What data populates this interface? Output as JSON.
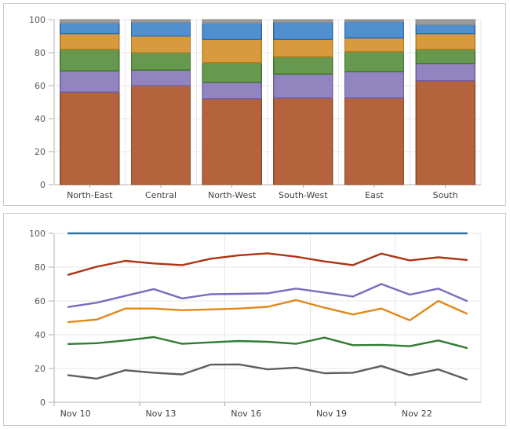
{
  "chart_data": [
    {
      "type": "bar",
      "stacked": "100%",
      "title": "",
      "xlabel": "",
      "ylabel": "",
      "ylim": [
        0,
        100
      ],
      "yticks": [
        0,
        20,
        40,
        60,
        80,
        100
      ],
      "grid": true,
      "legend_position": "none",
      "categories": [
        "North-East",
        "Central",
        "North-West",
        "South-West",
        "East",
        "South"
      ],
      "series": [
        {
          "name": "brown",
          "color": "#b5633c",
          "border": "#8f4a26",
          "values": [
            56,
            60,
            52,
            52.5,
            52.5,
            63
          ]
        },
        {
          "name": "purple",
          "color": "#9184bf",
          "border": "#6c5da7",
          "values": [
            13,
            9.5,
            10,
            14.5,
            16,
            10.5
          ]
        },
        {
          "name": "green",
          "color": "#66994f",
          "border": "#3e7527",
          "values": [
            13,
            10.5,
            12,
            10.5,
            12,
            8.5
          ]
        },
        {
          "name": "orange",
          "color": "#d89a3f",
          "border": "#b8791b",
          "values": [
            9.5,
            10,
            14,
            10.5,
            8.5,
            9.5
          ]
        },
        {
          "name": "blue",
          "color": "#5090ce",
          "border": "#2a66ae",
          "values": [
            6.5,
            8.5,
            10,
            10.5,
            10,
            5.5
          ]
        },
        {
          "name": "gray",
          "color": "#9c9c9c",
          "border": "#8a8a8a",
          "values": [
            2,
            1.5,
            2,
            1.5,
            1,
            3
          ]
        }
      ]
    },
    {
      "type": "line",
      "title": "",
      "xlabel": "",
      "ylabel": "",
      "ylim": [
        0,
        100
      ],
      "yticks": [
        0,
        20,
        40,
        60,
        80,
        100
      ],
      "grid": true,
      "legend_position": "none",
      "x": [
        "Nov 10",
        "Nov 11",
        "Nov 12",
        "Nov 13",
        "Nov 14",
        "Nov 15",
        "Nov 16",
        "Nov 17",
        "Nov 18",
        "Nov 19",
        "Nov 20",
        "Nov 21",
        "Nov 22",
        "Nov 23",
        "Nov 24"
      ],
      "x_tick_labels": [
        "Nov 10",
        "Nov 13",
        "Nov 16",
        "Nov 19",
        "Nov 22"
      ],
      "x_tick_indices": [
        0,
        3,
        6,
        9,
        12
      ],
      "series": [
        {
          "name": "gray",
          "color": "#5e5e5e",
          "values": [
            16,
            14,
            19,
            17.5,
            16.5,
            22.3,
            22.4,
            19.5,
            20.5,
            17.2,
            17.5,
            21.5,
            16,
            19.5,
            13.5
          ]
        },
        {
          "name": "green",
          "color": "#2f7d31",
          "values": [
            34.5,
            35,
            36.6,
            38.6,
            34.6,
            35.5,
            36.3,
            35.8,
            34.6,
            38.3,
            33.8,
            34,
            33.2,
            36.6,
            32.2
          ]
        },
        {
          "name": "orange",
          "color": "#e0881a",
          "values": [
            47.5,
            49,
            55.5,
            55.5,
            54.5,
            55,
            55.5,
            56.5,
            60.5,
            56,
            52,
            55.5,
            48.5,
            60,
            52.5
          ]
        },
        {
          "name": "purple",
          "color": "#7a6cbd",
          "values": [
            56.4,
            59,
            63,
            67,
            61.5,
            64,
            64.2,
            64.5,
            67.3,
            65,
            62.6,
            70,
            63.7,
            67.3,
            60
          ]
        },
        {
          "name": "red",
          "color": "#ae3311",
          "values": [
            75.5,
            80.3,
            83.7,
            82.2,
            81.2,
            85,
            87,
            88.2,
            86.2,
            83.4,
            81.2,
            88,
            84,
            85.8,
            84.3
          ]
        },
        {
          "name": "blue",
          "color": "#2c6e9e",
          "values": [
            100,
            100,
            100,
            100,
            100,
            100,
            100,
            100,
            100,
            100,
            100,
            100,
            100,
            100,
            100
          ]
        }
      ]
    }
  ]
}
